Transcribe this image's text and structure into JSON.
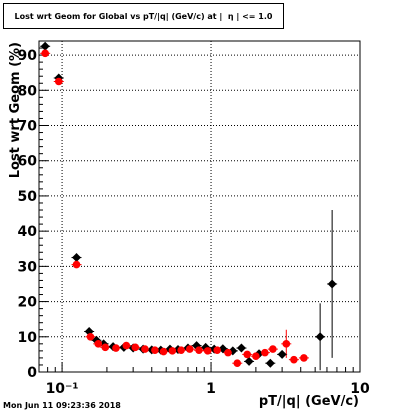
{
  "title": "Lost wrt Geom for Global vs pT/|q| (GeV/c) at |  η | <= 1.0",
  "footer": "Mon Jun 11 09:23:36 2018",
  "chart_data": {
    "type": "scatter",
    "title": "Lost wrt Geom for Global vs pT/|q| (GeV/c) at |  η | <= 1.0",
    "xlabel": "pT/|q| (GeV/c)",
    "ylabel": "Lost wrt Geom (%)",
    "xscale": "log",
    "xlim": [
      0.07,
      10
    ],
    "ylim": [
      0,
      94
    ],
    "grid": true,
    "x_major_ticks": [
      0.1,
      1,
      10
    ],
    "x_major_tick_labels": [
      "10⁻¹",
      "1",
      "10"
    ],
    "y_ticks": [
      0,
      10,
      20,
      30,
      40,
      50,
      60,
      70,
      80,
      90
    ],
    "series": [
      {
        "color": "#000000",
        "marker": "diamond",
        "points": [
          {
            "x": 0.077,
            "y": 92.5
          },
          {
            "x": 0.095,
            "y": 83.5
          },
          {
            "x": 0.125,
            "y": 32.5
          },
          {
            "x": 0.152,
            "y": 11.5
          },
          {
            "x": 0.17,
            "y": 9.0
          },
          {
            "x": 0.19,
            "y": 8.0
          },
          {
            "x": 0.22,
            "y": 7.2
          },
          {
            "x": 0.26,
            "y": 7.0
          },
          {
            "x": 0.3,
            "y": 6.8
          },
          {
            "x": 0.35,
            "y": 6.5
          },
          {
            "x": 0.4,
            "y": 6.3
          },
          {
            "x": 0.46,
            "y": 6.2
          },
          {
            "x": 0.53,
            "y": 6.5
          },
          {
            "x": 0.6,
            "y": 6.4
          },
          {
            "x": 0.7,
            "y": 6.8
          },
          {
            "x": 0.8,
            "y": 7.5
          },
          {
            "x": 0.92,
            "y": 7.0
          },
          {
            "x": 1.05,
            "y": 6.5
          },
          {
            "x": 1.2,
            "y": 6.6
          },
          {
            "x": 1.4,
            "y": 6.0
          },
          {
            "x": 1.6,
            "y": 6.8
          },
          {
            "x": 1.8,
            "y": 3.0
          },
          {
            "x": 2.1,
            "y": 5.2
          },
          {
            "x": 2.5,
            "y": 2.5
          },
          {
            "x": 3.0,
            "y": 5.0
          },
          {
            "x": 5.4,
            "y": 10.0,
            "yerr": 9.5
          },
          {
            "x": 6.5,
            "y": 25.0,
            "yerr": 21.0
          }
        ]
      },
      {
        "color": "#ff0000",
        "marker": "circle",
        "points": [
          {
            "x": 0.077,
            "y": 90.5
          },
          {
            "x": 0.095,
            "y": 82.5
          },
          {
            "x": 0.125,
            "y": 30.5
          },
          {
            "x": 0.155,
            "y": 10.0
          },
          {
            "x": 0.175,
            "y": 8.0
          },
          {
            "x": 0.195,
            "y": 7.0
          },
          {
            "x": 0.23,
            "y": 6.8
          },
          {
            "x": 0.27,
            "y": 7.5
          },
          {
            "x": 0.31,
            "y": 7.0
          },
          {
            "x": 0.36,
            "y": 6.5
          },
          {
            "x": 0.42,
            "y": 6.2
          },
          {
            "x": 0.48,
            "y": 5.8
          },
          {
            "x": 0.55,
            "y": 6.0
          },
          {
            "x": 0.63,
            "y": 6.2
          },
          {
            "x": 0.72,
            "y": 6.5
          },
          {
            "x": 0.83,
            "y": 6.2
          },
          {
            "x": 0.95,
            "y": 6.0
          },
          {
            "x": 1.1,
            "y": 6.2
          },
          {
            "x": 1.3,
            "y": 5.5
          },
          {
            "x": 1.5,
            "y": 2.5
          },
          {
            "x": 1.75,
            "y": 5.0
          },
          {
            "x": 2.0,
            "y": 4.5
          },
          {
            "x": 2.3,
            "y": 5.5
          },
          {
            "x": 2.6,
            "y": 6.5
          },
          {
            "x": 3.2,
            "y": 8.0,
            "yerr": 4.0
          },
          {
            "x": 3.6,
            "y": 3.5
          },
          {
            "x": 4.2,
            "y": 4.0
          }
        ]
      }
    ]
  }
}
